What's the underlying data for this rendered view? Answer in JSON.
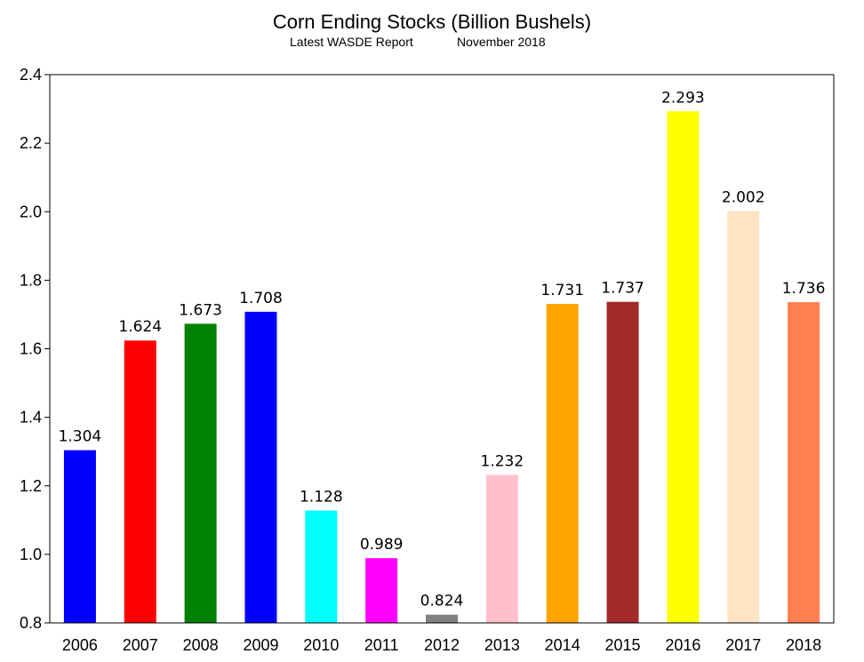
{
  "chart_data": {
    "type": "bar",
    "title": "Corn Ending Stocks (Billion Bushels)",
    "subtitle_left": "Latest WASDE Report",
    "subtitle_right": "November 2018",
    "categories": [
      "2006",
      "2007",
      "2008",
      "2009",
      "2010",
      "2011",
      "2012",
      "2013",
      "2014",
      "2015",
      "2016",
      "2017",
      "2018"
    ],
    "values": [
      1.304,
      1.624,
      1.673,
      1.708,
      1.128,
      0.989,
      0.824,
      1.232,
      1.731,
      1.737,
      2.293,
      2.002,
      1.736
    ],
    "value_labels": [
      "1.304",
      "1.624",
      "1.673",
      "1.708",
      "1.128",
      "0.989",
      "0.824",
      "1.232",
      "1.731",
      "1.737",
      "2.293",
      "2.002",
      "1.736"
    ],
    "colors": [
      "#0000ff",
      "#ff0000",
      "#008000",
      "#0000ff",
      "#00ffff",
      "#ff00ff",
      "#808080",
      "#ffc0cb",
      "#ffa500",
      "#a52a2a",
      "#ffff00",
      "#ffe4c4",
      "#ff7f50"
    ],
    "ylim": [
      0.8,
      2.4
    ],
    "yticks": [
      0.8,
      1.0,
      1.2,
      1.4,
      1.6,
      1.8,
      2.0,
      2.2,
      2.4
    ],
    "ytick_labels": [
      "0.8",
      "1.0",
      "1.2",
      "1.4",
      "1.6",
      "1.8",
      "2.0",
      "2.2",
      "2.4"
    ],
    "xlabel": "",
    "ylabel": "",
    "grid": false,
    "legend": "none"
  }
}
